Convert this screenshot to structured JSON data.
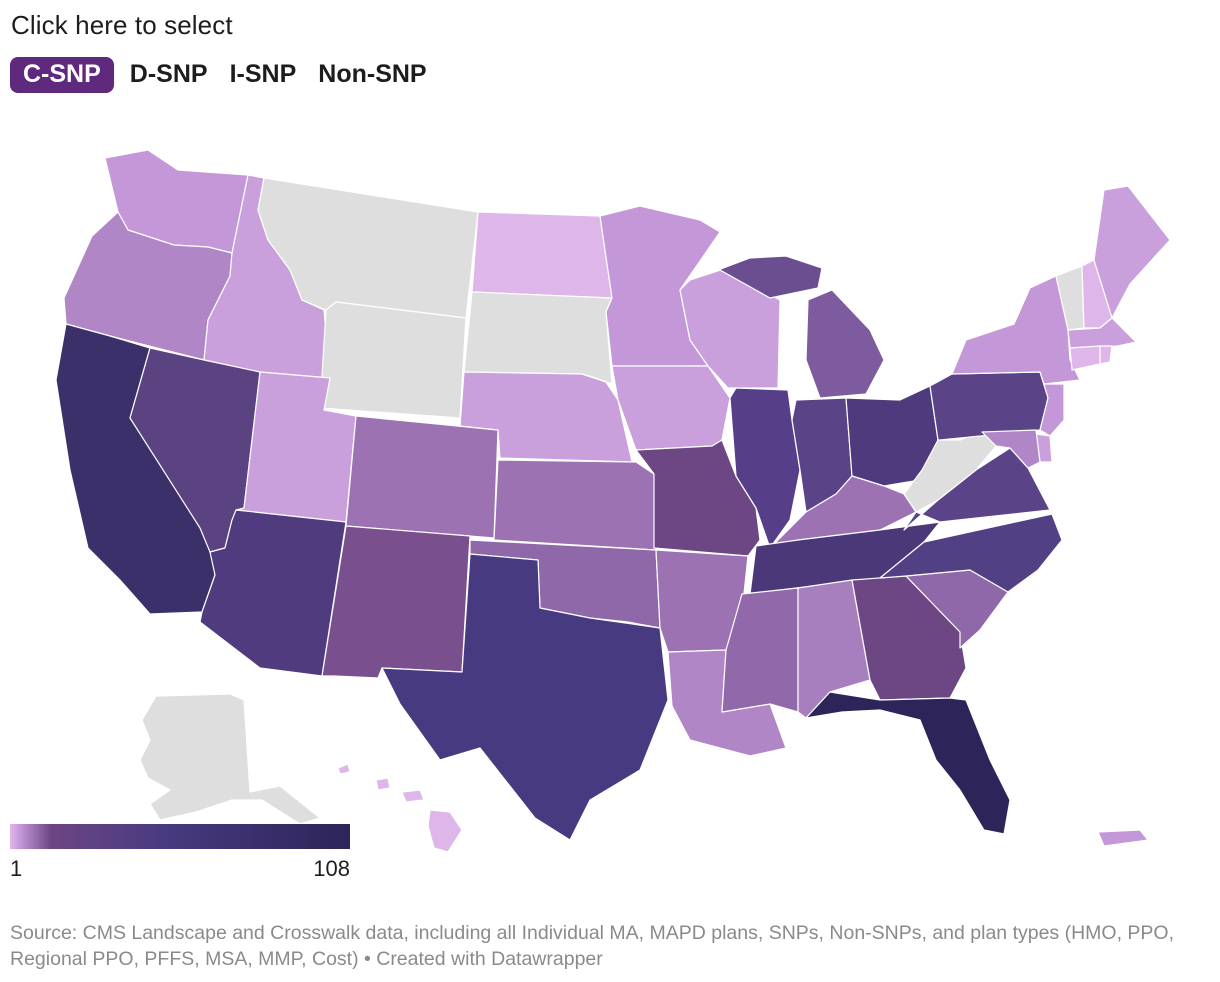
{
  "header": {
    "prompt": "Click here to select"
  },
  "tabs": [
    {
      "label": "C-SNP",
      "active": true
    },
    {
      "label": "D-SNP",
      "active": false
    },
    {
      "label": "I-SNP",
      "active": false
    },
    {
      "label": "Non-SNP",
      "active": false
    }
  ],
  "colors": {
    "active_tab": "#5f2a7d",
    "no_data": "#dedede",
    "scale_low": "#dfb6ea",
    "scale_high": "#2d2459",
    "border": "#ffffff"
  },
  "legend": {
    "min": "1",
    "max": "108"
  },
  "footer": {
    "source": "Source: CMS Landscape and Crosswalk data, including all Individual MA, MAPD plans, SNPs, Non-SNPs, and plan types (HMO, PPO, Regional PPO, PFFS, MSA, MMP, Cost) • Created with Datawrapper"
  }
}
